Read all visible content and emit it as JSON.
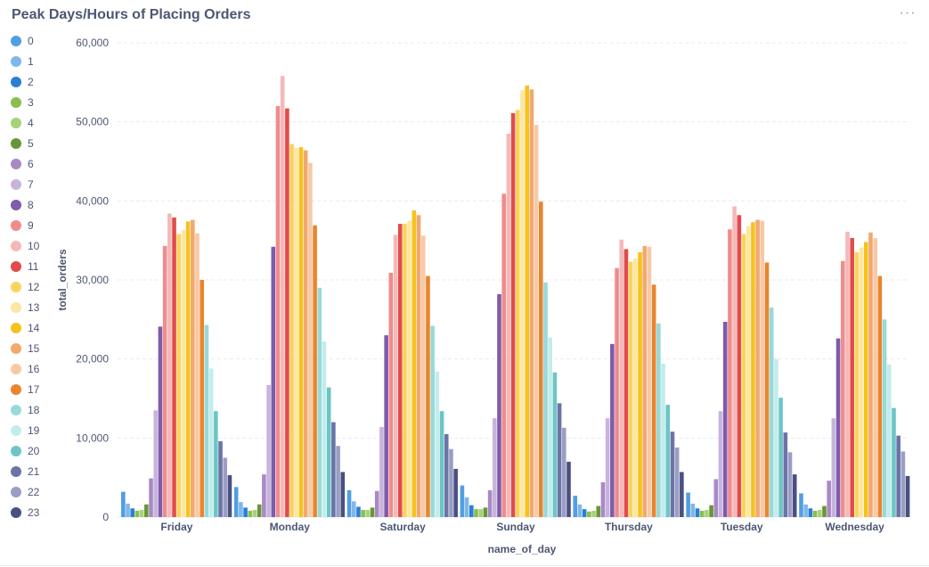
{
  "card": {
    "title": "Peak Days/Hours of Placing Orders",
    "menu_icon": "ellipsis-icon",
    "menu_glyph": "···"
  },
  "colors": [
    "#509EE3",
    "#7FB7EB",
    "#2B7ED6",
    "#88BF4D",
    "#A6D27A",
    "#689636",
    "#A989C5",
    "#C7B4DC",
    "#7E5BAC",
    "#EF8C8C",
    "#F5B8B8",
    "#E24B4B",
    "#F9D45C",
    "#FBE6A3",
    "#F6C21C",
    "#F2A86F",
    "#F7C9A5",
    "#E9852E",
    "#98D9D9",
    "#C3ECEC",
    "#6CC5C5",
    "#6C73A6",
    "#9A9EC4",
    "#4A4F83"
  ],
  "chart_data": {
    "type": "bar",
    "title": "Peak Days/Hours of Placing Orders",
    "xlabel": "name_of_day",
    "ylabel": "total_orders",
    "ylim": [
      0,
      60000
    ],
    "yticks": [
      "0",
      "10,000",
      "20,000",
      "30,000",
      "40,000",
      "50,000",
      "60,000"
    ],
    "ytick_values": [
      0,
      10000,
      20000,
      30000,
      40000,
      50000,
      60000
    ],
    "grid": true,
    "legend_position": "left",
    "categories": [
      "Friday",
      "Monday",
      "Saturday",
      "Sunday",
      "Thursday",
      "Tuesday",
      "Wednesday"
    ],
    "series": [
      {
        "name": "0",
        "values": [
          3200,
          3800,
          3400,
          4000,
          2700,
          3100,
          3000
        ]
      },
      {
        "name": "1",
        "values": [
          1700,
          1900,
          2000,
          2500,
          1600,
          1700,
          1600
        ]
      },
      {
        "name": "2",
        "values": [
          1100,
          1200,
          1300,
          1500,
          1000,
          1100,
          1100
        ]
      },
      {
        "name": "3",
        "values": [
          800,
          800,
          900,
          1000,
          700,
          800,
          800
        ]
      },
      {
        "name": "4",
        "values": [
          900,
          900,
          900,
          1000,
          800,
          900,
          900
        ]
      },
      {
        "name": "5",
        "values": [
          1600,
          1600,
          1200,
          1200,
          1400,
          1500,
          1400
        ]
      },
      {
        "name": "6",
        "values": [
          4900,
          5400,
          3300,
          3400,
          4400,
          4800,
          4600
        ]
      },
      {
        "name": "7",
        "values": [
          13500,
          16700,
          11400,
          12500,
          12500,
          13400,
          12500
        ]
      },
      {
        "name": "8",
        "values": [
          24100,
          34200,
          23000,
          28200,
          21900,
          24700,
          22600
        ]
      },
      {
        "name": "9",
        "values": [
          34300,
          52000,
          30900,
          40900,
          31500,
          36400,
          32400
        ]
      },
      {
        "name": "10",
        "values": [
          38400,
          55800,
          35700,
          48500,
          35100,
          39300,
          36100
        ]
      },
      {
        "name": "11",
        "values": [
          37900,
          51700,
          37100,
          51100,
          33900,
          38200,
          35300
        ]
      },
      {
        "name": "12",
        "values": [
          35800,
          47200,
          37100,
          51500,
          32300,
          35800,
          33500
        ]
      },
      {
        "name": "13",
        "values": [
          36300,
          46700,
          37500,
          54000,
          32700,
          36800,
          34100
        ]
      },
      {
        "name": "14",
        "values": [
          37400,
          46800,
          38800,
          54600,
          33500,
          37300,
          34800
        ]
      },
      {
        "name": "15",
        "values": [
          37600,
          46400,
          38200,
          54100,
          34300,
          37600,
          36000
        ]
      },
      {
        "name": "16",
        "values": [
          35900,
          44800,
          35600,
          49600,
          34200,
          37500,
          35300
        ]
      },
      {
        "name": "17",
        "values": [
          30000,
          36900,
          30500,
          39900,
          29400,
          32200,
          30500
        ]
      },
      {
        "name": "18",
        "values": [
          24300,
          29000,
          24200,
          29700,
          24500,
          26500,
          25000
        ]
      },
      {
        "name": "19",
        "values": [
          18800,
          22200,
          18400,
          22700,
          19400,
          20000,
          19300
        ]
      },
      {
        "name": "20",
        "values": [
          13400,
          16400,
          13400,
          18300,
          14200,
          15100,
          13800
        ]
      },
      {
        "name": "21",
        "values": [
          9600,
          12000,
          10500,
          14400,
          10800,
          10700,
          10300
        ]
      },
      {
        "name": "22",
        "values": [
          7500,
          9000,
          8600,
          11300,
          8800,
          8200,
          8300
        ]
      },
      {
        "name": "23",
        "values": [
          5300,
          5700,
          6100,
          7000,
          5700,
          5400,
          5200
        ]
      }
    ]
  }
}
